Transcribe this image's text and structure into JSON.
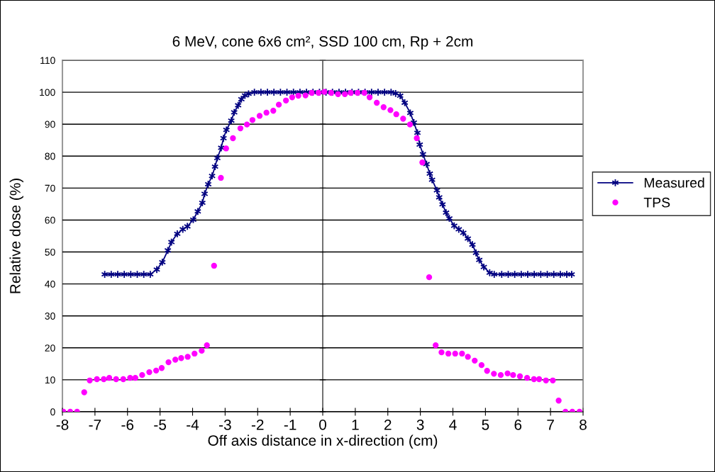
{
  "chart_data": {
    "type": "line",
    "title": "6 MeV, cone 6x6 cm², SSD 100 cm, Rp + 2cm",
    "xlabel": "Off axis distance in x-direction (cm)",
    "ylabel": "Relative dose (%)",
    "xlim": [
      -8,
      8
    ],
    "xticks": [
      -8,
      -7,
      -6,
      -5,
      -4,
      -3,
      -2,
      -1,
      0,
      1,
      2,
      3,
      4,
      5,
      6,
      7,
      8
    ],
    "ylim": [
      0,
      110
    ],
    "yticks": [
      0,
      10,
      20,
      30,
      40,
      50,
      60,
      70,
      80,
      90,
      100,
      110
    ],
    "grid": "y",
    "legend": "right",
    "series": [
      {
        "name": "Measured",
        "marker": "cross",
        "color": "#000080",
        "x": [
          -6.7,
          -6.5,
          -6.3,
          -6.1,
          -5.9,
          -5.7,
          -5.5,
          -5.3,
          -5.1,
          -4.93,
          -4.76,
          -4.65,
          -4.47,
          -4.3,
          -4.16,
          -3.98,
          -3.84,
          -3.7,
          -3.63,
          -3.52,
          -3.4,
          -3.31,
          -3.24,
          -3.12,
          -3.05,
          -2.96,
          -2.81,
          -2.72,
          -2.6,
          -2.5,
          -2.39,
          -2.28,
          -2.1,
          -1.9,
          -1.7,
          -1.5,
          -1.3,
          -1.1,
          -0.9,
          -0.7,
          -0.5,
          -0.3,
          -0.1,
          0.1,
          0.3,
          0.5,
          0.7,
          0.9,
          1.1,
          1.3,
          1.5,
          1.7,
          1.9,
          2.1,
          2.24,
          2.38,
          2.52,
          2.69,
          2.8,
          2.91,
          2.98,
          3.08,
          3.19,
          3.29,
          3.36,
          3.51,
          3.58,
          3.68,
          3.79,
          3.89,
          4.04,
          4.18,
          4.32,
          4.46,
          4.6,
          4.71,
          4.81,
          4.95,
          5.13,
          5.27,
          5.5,
          5.7,
          5.9,
          6.1,
          6.3,
          6.5,
          6.7,
          6.9,
          7.1,
          7.3,
          7.5,
          7.65
        ],
        "values": [
          43,
          43,
          43,
          43,
          43,
          43,
          43,
          43,
          44.5,
          46.8,
          50.5,
          53.1,
          55.7,
          57.1,
          58,
          60.1,
          62.7,
          65.4,
          68.2,
          71.2,
          73.8,
          76.7,
          79.4,
          82.6,
          85.6,
          88.2,
          91.1,
          93.7,
          95.9,
          97.8,
          99,
          99.5,
          100,
          100,
          100,
          100,
          100,
          100,
          100,
          100,
          100,
          100,
          100,
          100,
          100,
          100,
          100,
          100,
          100,
          100,
          100,
          100,
          100,
          100,
          99.6,
          98.9,
          96.7,
          93.5,
          90.5,
          87.3,
          83.6,
          80.6,
          77.5,
          74.5,
          72.6,
          69.3,
          67.1,
          64.9,
          62.3,
          60.5,
          58.2,
          57.1,
          56,
          54.2,
          52.3,
          49.7,
          47.5,
          45.3,
          43.5,
          43,
          43,
          43,
          43,
          43,
          43,
          43,
          43,
          43,
          43,
          43,
          43,
          43
        ]
      },
      {
        "name": "TPS",
        "type": "scatter",
        "marker": "circle",
        "color": "#ff00ff",
        "x": [
          -7.97,
          -7.76,
          -7.55,
          -7.33,
          -7.16,
          -6.94,
          -6.73,
          -6.56,
          -6.35,
          -6.13,
          -5.92,
          -5.76,
          -5.55,
          -5.33,
          -5.12,
          -4.95,
          -4.74,
          -4.53,
          -4.35,
          -4.15,
          -3.94,
          -3.72,
          -3.56,
          -3.34,
          -3.13,
          -2.97,
          -2.76,
          -2.53,
          -2.33,
          -2.16,
          -1.94,
          -1.73,
          -1.52,
          -1.35,
          -1.13,
          -0.94,
          -0.75,
          -0.53,
          -0.34,
          -0.13,
          0.05,
          0.26,
          0.47,
          0.68,
          0.86,
          1.07,
          1.28,
          1.44,
          1.66,
          1.87,
          2.08,
          2.26,
          2.47,
          2.68,
          2.89,
          3.06,
          3.27,
          3.47,
          3.65,
          3.86,
          4.07,
          4.28,
          4.46,
          4.67,
          4.88,
          5.05,
          5.26,
          5.47,
          5.68,
          5.85,
          6.06,
          6.28,
          6.49,
          6.65,
          6.86,
          7.07,
          7.25,
          7.46,
          7.67,
          7.89
        ],
        "values": [
          0,
          0,
          0,
          6.1,
          9.8,
          10.2,
          10.2,
          10.6,
          10.2,
          10.2,
          10.6,
          10.6,
          11.5,
          12.4,
          12.9,
          13.7,
          15.5,
          16.3,
          16.8,
          17.2,
          18.2,
          19.1,
          20.8,
          45.7,
          73.2,
          82.4,
          85.6,
          88.7,
          89.9,
          91.3,
          92.6,
          93.6,
          94.2,
          96.1,
          97.4,
          98.4,
          98.9,
          99,
          99.8,
          99.8,
          100.1,
          99.8,
          99.4,
          99.4,
          99.8,
          99.8,
          99.8,
          98.4,
          96.7,
          95.3,
          94.4,
          93.1,
          91.7,
          89.9,
          85.6,
          78,
          42.1,
          20.8,
          18.6,
          18.2,
          18.2,
          18.2,
          17.2,
          16,
          14.6,
          12.8,
          11.9,
          11.5,
          12,
          11.5,
          11.1,
          10.6,
          10.2,
          10.2,
          9.8,
          9.8,
          3.5,
          0,
          0,
          0
        ]
      }
    ]
  }
}
